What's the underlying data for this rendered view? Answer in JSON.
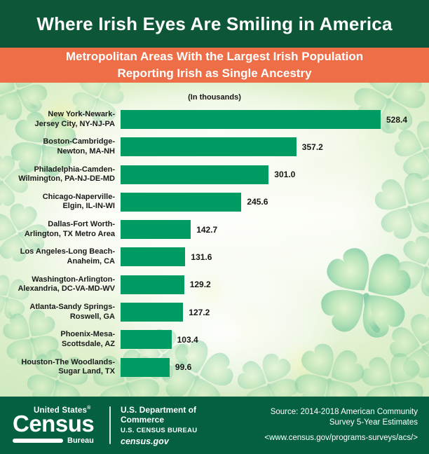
{
  "title_band": {
    "title": "Where Irish Eyes Are Smiling in America"
  },
  "subtitle_band": {
    "line1": "Metropolitan Areas With the Largest Irish Population",
    "line2": "Reporting Irish as Single Ancestry"
  },
  "chart_data": {
    "type": "bar",
    "orientation": "horizontal",
    "title": "Where Irish Eyes Are Smiling in America",
    "subtitle": "Metropolitan Areas With the Largest Irish Population Reporting Irish as Single Ancestry",
    "units_label": "(In thousands)",
    "categories": [
      "New York-Newark-Jersey City, NY-NJ-PA",
      "Boston-Cambridge-Newton, MA-NH",
      "Philadelphia-Camden-Wilmington, PA-NJ-DE-MD",
      "Chicago-Naperville-Elgin, IL-IN-WI",
      "Dallas-Fort Worth-Arlington, TX Metro Area",
      "Los Angeles-Long Beach-Anaheim, CA",
      "Washington-Arlington-Alexandria, DC-VA-MD-WV",
      "Atlanta-Sandy Springs-Roswell, GA",
      "Phoenix-Mesa-Scottsdale, AZ",
      "Houston-The Woodlands-Sugar Land, TX"
    ],
    "category_lines": [
      [
        "New York-Newark-",
        "Jersey City, NY-NJ-PA"
      ],
      [
        "Boston-Cambridge-",
        "Newton, MA-NH"
      ],
      [
        "Philadelphia-Camden-",
        "Wilmington, PA-NJ-DE-MD"
      ],
      [
        "Chicago-Naperville-",
        "Elgin, IL-IN-WI"
      ],
      [
        "Dallas-Fort Worth-",
        "Arlington, TX Metro Area"
      ],
      [
        "Los Angeles-Long Beach-",
        "Anaheim, CA"
      ],
      [
        "Washington-Arlington-",
        "Alexandria, DC-VA-MD-WV"
      ],
      [
        "Atlanta-Sandy Springs-",
        "Roswell, GA"
      ],
      [
        "Phoenix-Mesa-",
        "Scottsdale, AZ"
      ],
      [
        "Houston-The Woodlands-",
        "Sugar Land, TX"
      ]
    ],
    "values": [
      528.4,
      357.2,
      301.0,
      245.6,
      142.7,
      131.6,
      129.2,
      127.2,
      103.4,
      99.6
    ],
    "value_labels": [
      "528.4",
      "357.2",
      "301.0",
      "245.6",
      "142.7",
      "131.6",
      "129.2",
      "127.2",
      "103.4",
      "99.6"
    ],
    "xlim": [
      0,
      560
    ],
    "grid": false,
    "legend": false,
    "bar_color": "#009b63"
  },
  "footer": {
    "logo": {
      "top": "United States",
      "reg_mark": "®",
      "main": "Census",
      "sub": "Bureau"
    },
    "commerce": {
      "line1": "U.S. Department of Commerce",
      "line2": "U.S. CENSUS BUREAU",
      "line3": "census.gov"
    },
    "source": {
      "line1": "Source: 2014-2018 American Community",
      "line2": "Survey 5-Year Estimates",
      "line3": "<www.census.gov/programs-surveys/acs/>"
    }
  },
  "colors": {
    "header_green": "#0d5638",
    "orange": "#ee6e48",
    "bar_green": "#009b63",
    "footer_green": "#055f41",
    "text_dark": "#1a1a1a"
  }
}
